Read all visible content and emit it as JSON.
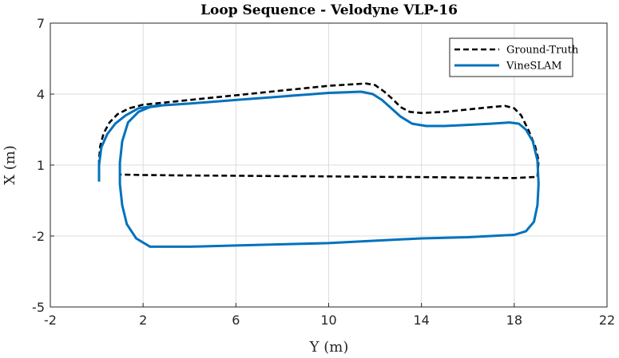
{
  "chart_data": {
    "type": "line",
    "title": "Loop Sequence - Velodyne VLP-16",
    "xlabel": "Y (m)",
    "ylabel": "X (m)",
    "xlim": [
      -2,
      22
    ],
    "ylim": [
      -5,
      7
    ],
    "xticks": [
      -2,
      2,
      6,
      10,
      14,
      18,
      22
    ],
    "yticks": [
      -5,
      -2,
      1,
      4,
      7
    ],
    "grid": true,
    "legend_position": "top-right",
    "series": [
      {
        "name": "Ground-Truth",
        "color": "#000000",
        "style": "dashed",
        "x": [
          0.1,
          0.1,
          0.15,
          0.3,
          0.55,
          0.9,
          1.4,
          2.0,
          3.0,
          4.5,
          6.0,
          8.0,
          10.0,
          11.6,
          12.0,
          12.4,
          12.8,
          13.1,
          13.5,
          14.0,
          15.0,
          16.0,
          17.0,
          17.6,
          18.0,
          18.3,
          18.6,
          18.9,
          19.05,
          19.0,
          18.0,
          16.0,
          14.0,
          12.0,
          10.0,
          8.0,
          6.0,
          4.0,
          2.0,
          1.0
        ],
        "y": [
          0.6,
          1.2,
          1.8,
          2.35,
          2.8,
          3.15,
          3.4,
          3.55,
          3.65,
          3.8,
          3.95,
          4.15,
          4.35,
          4.45,
          4.38,
          4.1,
          3.75,
          3.45,
          3.25,
          3.2,
          3.25,
          3.35,
          3.45,
          3.5,
          3.4,
          3.1,
          2.5,
          1.8,
          1.2,
          0.5,
          0.45,
          0.47,
          0.49,
          0.5,
          0.52,
          0.53,
          0.55,
          0.56,
          0.58,
          0.6
        ]
      },
      {
        "name": "VineSLAM",
        "color": "#0072bd",
        "style": "solid",
        "x": [
          0.1,
          0.1,
          0.2,
          0.45,
          0.8,
          1.25,
          1.8,
          2.5,
          4.0,
          6.0,
          8.0,
          10.0,
          11.4,
          11.9,
          12.3,
          12.7,
          13.1,
          13.6,
          14.2,
          15.0,
          16.0,
          17.0,
          17.8,
          18.2,
          18.5,
          18.8,
          19.0,
          19.05,
          19.0,
          18.85,
          18.5,
          18.0,
          16.0,
          14.0,
          12.0,
          10.0,
          8.0,
          6.0,
          4.0,
          3.0,
          2.3,
          1.7,
          1.3,
          1.1,
          1.0,
          1.0,
          1.1,
          1.35,
          1.8,
          2.3,
          2.7,
          3.0
        ],
        "y": [
          0.3,
          1.0,
          1.75,
          2.3,
          2.75,
          3.1,
          3.4,
          3.5,
          3.6,
          3.75,
          3.9,
          4.05,
          4.1,
          4.0,
          3.75,
          3.4,
          3.05,
          2.75,
          2.65,
          2.65,
          2.7,
          2.75,
          2.8,
          2.75,
          2.5,
          2.0,
          1.2,
          0.2,
          -0.7,
          -1.4,
          -1.8,
          -1.95,
          -2.05,
          -2.1,
          -2.2,
          -2.3,
          -2.35,
          -2.4,
          -2.45,
          -2.45,
          -2.45,
          -2.1,
          -1.5,
          -0.7,
          0.2,
          1.1,
          2.0,
          2.8,
          3.25,
          3.45,
          3.5,
          3.55
        ]
      }
    ]
  }
}
